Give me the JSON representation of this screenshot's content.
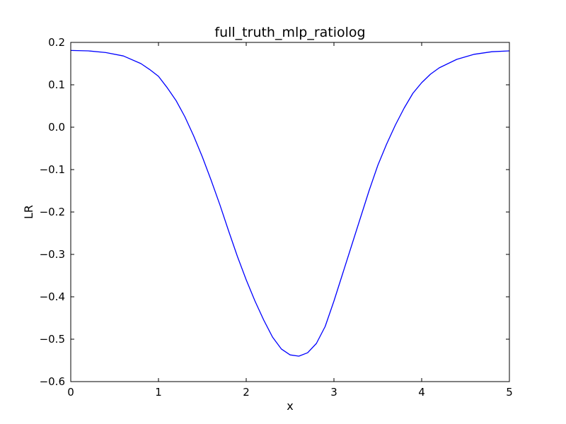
{
  "chart_data": {
    "type": "line",
    "title": "full_truth_mlp_ratiolog",
    "xlabel": "x",
    "ylabel": "LR",
    "xlim": [
      0,
      5
    ],
    "ylim": [
      -0.6,
      0.2
    ],
    "xticks": [
      0,
      1,
      2,
      3,
      4,
      5
    ],
    "xtick_labels": [
      "0",
      "1",
      "2",
      "3",
      "4",
      "5"
    ],
    "yticks": [
      -0.6,
      -0.5,
      -0.4,
      -0.3,
      -0.2,
      -0.1,
      0.0,
      0.1,
      0.2
    ],
    "ytick_labels": [
      "−0.6",
      "−0.5",
      "−0.4",
      "−0.3",
      "−0.2",
      "−0.1",
      "0.0",
      "0.1",
      "0.2"
    ],
    "grid": false,
    "series": [
      {
        "color": "#0000ff",
        "x": [
          0.0,
          0.2,
          0.4,
          0.6,
          0.8,
          0.9,
          1.0,
          1.1,
          1.2,
          1.3,
          1.4,
          1.5,
          1.6,
          1.7,
          1.8,
          1.9,
          2.0,
          2.1,
          2.2,
          2.3,
          2.4,
          2.5,
          2.6,
          2.7,
          2.8,
          2.9,
          3.0,
          3.1,
          3.2,
          3.3,
          3.4,
          3.5,
          3.6,
          3.7,
          3.8,
          3.9,
          4.0,
          4.1,
          4.2,
          4.4,
          4.6,
          4.8,
          5.0
        ],
        "y": [
          0.181,
          0.18,
          0.176,
          0.168,
          0.15,
          0.136,
          0.12,
          0.093,
          0.063,
          0.025,
          -0.02,
          -0.07,
          -0.125,
          -0.183,
          -0.245,
          -0.305,
          -0.36,
          -0.41,
          -0.455,
          -0.495,
          -0.523,
          -0.537,
          -0.54,
          -0.532,
          -0.51,
          -0.47,
          -0.41,
          -0.345,
          -0.28,
          -0.215,
          -0.15,
          -0.09,
          -0.04,
          0.005,
          0.045,
          0.08,
          0.105,
          0.125,
          0.14,
          0.16,
          0.172,
          0.178,
          0.18
        ]
      }
    ]
  }
}
